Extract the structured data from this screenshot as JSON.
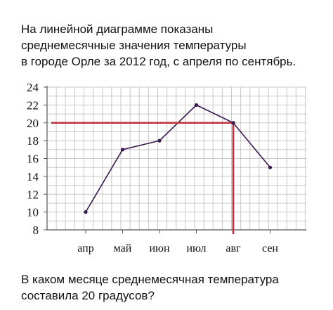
{
  "question": {
    "intro_lines": [
      "На линейной диаграмме показаны",
      "среднемесячные значения температуры",
      "в городе Орле за 2012 год, с апреля по сентябрь."
    ],
    "ask_lines": [
      "В каком месяце среднемесячная температура",
      "составила 20 градусов?"
    ]
  },
  "chart_data": {
    "type": "line",
    "categories": [
      "апр",
      "май",
      "июн",
      "июл",
      "авг",
      "сен"
    ],
    "series": [
      {
        "values": [
          10,
          17,
          18,
          22,
          20,
          15
        ]
      }
    ],
    "ylim": [
      8,
      24
    ],
    "yticks": [
      8,
      10,
      12,
      14,
      16,
      18,
      20,
      22,
      24
    ],
    "grid": true,
    "highlight": {
      "y": 20,
      "category": "авг"
    },
    "colors": {
      "line": "#3b1a4f",
      "highlight": "#c0303a",
      "grid": "#c8c8c8",
      "axis": "#555555"
    }
  }
}
